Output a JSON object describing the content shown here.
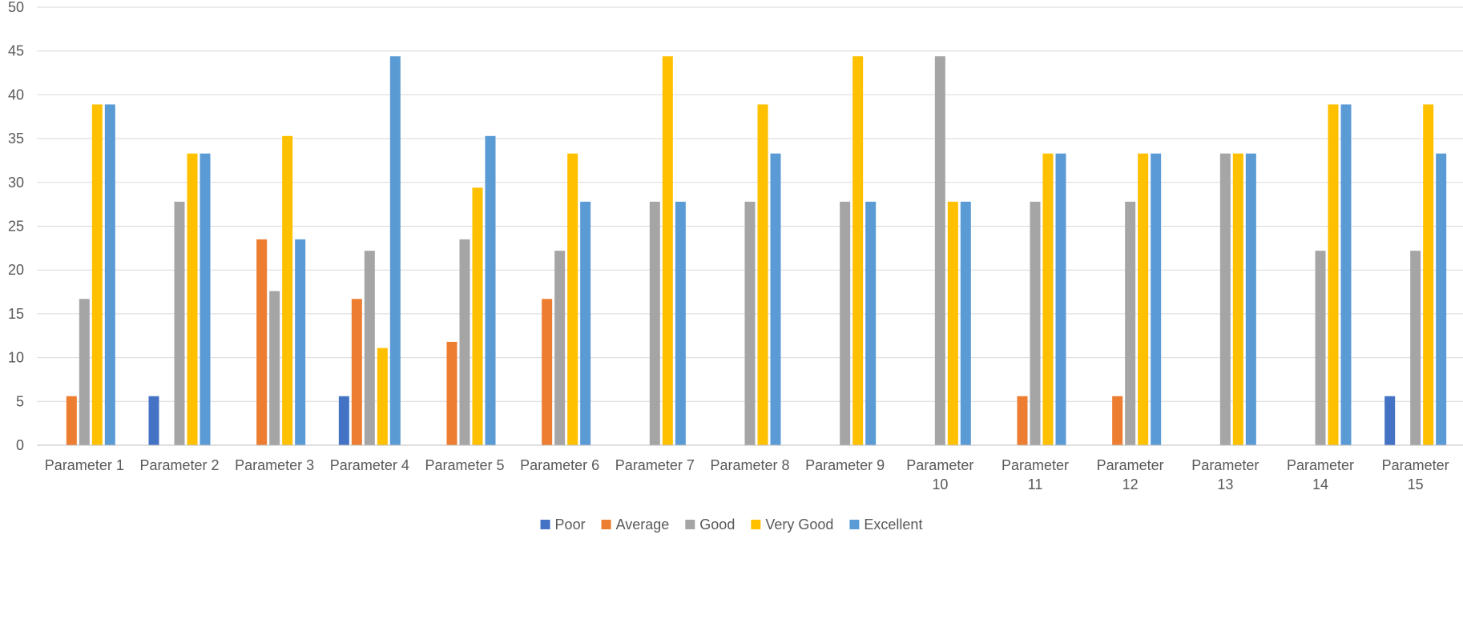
{
  "chart_data": {
    "type": "bar",
    "title": "",
    "xlabel": "",
    "ylabel": "",
    "ylim": [
      0,
      50
    ],
    "yticks": [
      0,
      5,
      10,
      15,
      20,
      25,
      30,
      35,
      40,
      45,
      50
    ],
    "grid": true,
    "legend_position": "bottom-center",
    "categories": [
      "Parameter 1",
      "Parameter 2",
      "Parameter 3",
      "Parameter 4",
      "Parameter 5",
      "Parameter 6",
      "Parameter 7",
      "Parameter 8",
      "Parameter 9",
      "Parameter 10",
      "Parameter 11",
      "Parameter 12",
      "Parameter 13",
      "Parameter 14",
      "Parameter 15"
    ],
    "series": [
      {
        "name": "Poor",
        "color": "#4472C4",
        "values": [
          0,
          5.6,
          0,
          5.6,
          0,
          0,
          0,
          0,
          0,
          0,
          0,
          0,
          0,
          0,
          5.6
        ]
      },
      {
        "name": "Average",
        "color": "#ED7D31",
        "values": [
          5.6,
          0,
          23.5,
          16.7,
          11.8,
          16.7,
          0,
          0,
          0,
          0,
          5.6,
          5.6,
          0,
          0,
          0
        ]
      },
      {
        "name": "Good",
        "color": "#A5A5A5",
        "values": [
          16.7,
          27.8,
          17.6,
          22.2,
          23.5,
          22.2,
          27.8,
          27.8,
          27.8,
          44.4,
          27.8,
          27.8,
          33.3,
          22.2,
          22.2
        ]
      },
      {
        "name": "Very Good",
        "color": "#FFC000",
        "values": [
          38.9,
          33.3,
          35.3,
          11.1,
          29.4,
          33.3,
          44.4,
          38.9,
          44.4,
          27.8,
          33.3,
          33.3,
          33.3,
          38.9,
          38.9
        ]
      },
      {
        "name": "Excellent",
        "color": "#5B9BD5",
        "values": [
          38.9,
          33.3,
          23.5,
          44.4,
          35.3,
          27.8,
          27.8,
          33.3,
          27.8,
          27.8,
          33.3,
          33.3,
          33.3,
          38.9,
          33.3
        ]
      }
    ]
  }
}
